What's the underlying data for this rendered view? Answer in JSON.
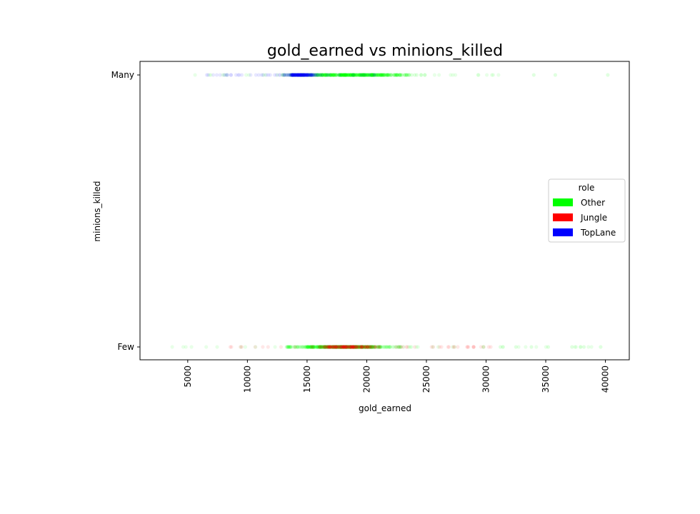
{
  "chart_data": {
    "type": "scatter",
    "title": "gold_earned vs minions_killed",
    "xlabel": "gold_earned",
    "ylabel": "minions_killed",
    "xlim": [
      1000,
      42000
    ],
    "x_ticks": [
      "5000",
      "10000",
      "15000",
      "20000",
      "25000",
      "30000",
      "35000",
      "40000"
    ],
    "x_tick_values": [
      5000,
      10000,
      15000,
      20000,
      25000,
      30000,
      35000,
      40000
    ],
    "y_categories": [
      "Few",
      "Many"
    ],
    "grid": false,
    "legend": {
      "title": "role",
      "placement": "center-right",
      "entries": [
        {
          "label": "Other",
          "color": "#00ff00"
        },
        {
          "label": "Jungle",
          "color": "#ff0000"
        },
        {
          "label": "TopLane",
          "color": "#0000ff"
        }
      ]
    },
    "series": [
      {
        "name": "Other",
        "color": "#00ff00",
        "points": [
          {
            "y": "Many",
            "x_range": [
              4300,
              31600
            ],
            "dense_range": [
              11500,
              26000
            ]
          },
          {
            "y": "Few",
            "x_range": [
              3000,
              40200
            ],
            "dense_range": [
              12000,
              24000
            ]
          }
        ],
        "outliers": [
          {
            "y": "Many",
            "x": [
              34000,
              35800,
              40200
            ]
          },
          {
            "y": "Few",
            "x": [
              31200,
              32500,
              33800,
              35200,
              37200,
              38200,
              39600
            ]
          }
        ]
      },
      {
        "name": "Jungle",
        "color": "#ff0000",
        "points": [
          {
            "y": "Few",
            "x_range": [
              8000,
              30500
            ],
            "dense_range": [
              15000,
              22000
            ]
          }
        ]
      },
      {
        "name": "TopLane",
        "color": "#0000ff",
        "points": [
          {
            "y": "Many",
            "x_range": [
              6000,
              21000
            ],
            "dense_range": [
              12500,
              16500
            ]
          }
        ]
      }
    ]
  }
}
